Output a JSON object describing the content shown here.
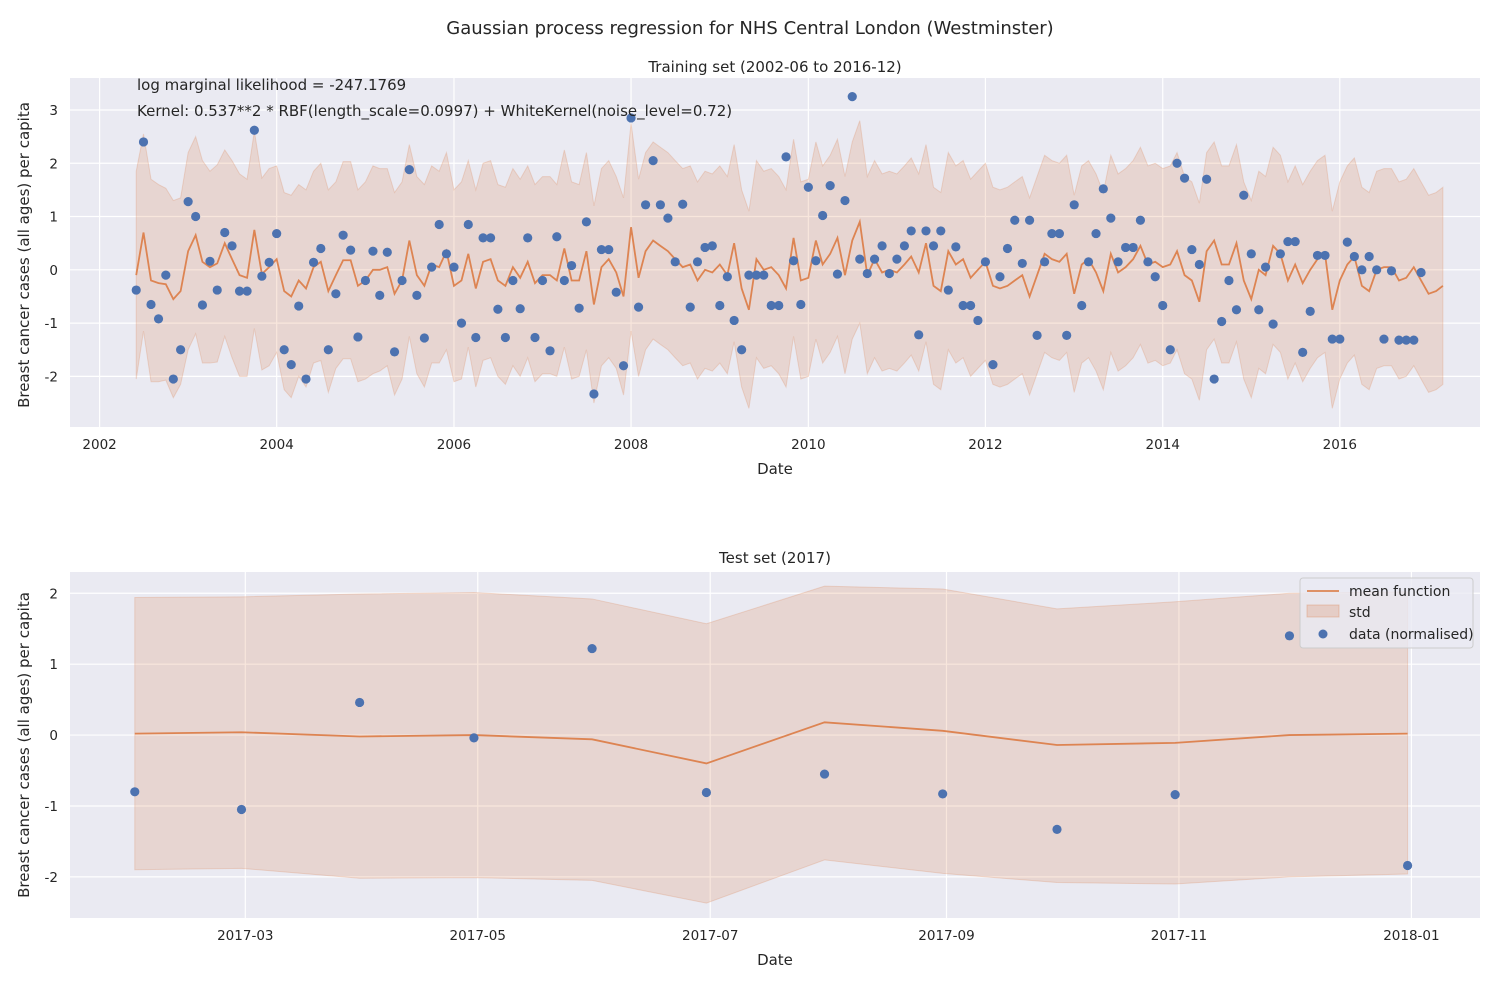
{
  "figure": {
    "suptitle": "Gaussian process regression for NHS Central London (Westminster)"
  },
  "colors": {
    "background": "#eaeaf2",
    "grid": "#ffffff",
    "mean_line": "#dd8452",
    "std_fill": "#dd8452",
    "points": "#4c72b0"
  },
  "chart_data": [
    {
      "type": "line",
      "title": "Training set (2002-06 to 2016-12)",
      "xlabel": "Date",
      "ylabel": "Breast cancer cases (all ages) per capita",
      "xlim": [
        "2001-09-01",
        "2017-08-01"
      ],
      "ylim": [
        -2.95,
        3.6
      ],
      "xticks": [
        "2002",
        "2004",
        "2006",
        "2008",
        "2010",
        "2012",
        "2014",
        "2016"
      ],
      "yticks": [
        -2,
        -1,
        0,
        1,
        2,
        3
      ],
      "grid": true,
      "annotations": [
        "log marginal likelihood = -247.1769",
        "Kernel: 0.537**2 * RBF(length_scale=0.0997) + WhiteKernel(noise_level=0.72)"
      ],
      "x_start": "2002-06",
      "x_step": "1 month",
      "series": [
        {
          "name": "mean function",
          "kind": "line",
          "values": [
            -0.1,
            0.7,
            -0.2,
            -0.25,
            -0.27,
            -0.55,
            -0.4,
            0.35,
            0.65,
            0.15,
            0.05,
            0.12,
            0.5,
            0.2,
            -0.1,
            -0.15,
            0.75,
            -0.08,
            0.05,
            0.2,
            -0.4,
            -0.5,
            -0.2,
            -0.35,
            0.05,
            0.15,
            -0.4,
            -0.1,
            0.18,
            0.18,
            -0.3,
            -0.2,
            0.0,
            0.0,
            0.05,
            -0.45,
            -0.2,
            0.55,
            -0.1,
            -0.3,
            0.1,
            0.05,
            0.35,
            -0.3,
            -0.2,
            0.3,
            -0.35,
            0.15,
            0.2,
            -0.2,
            -0.3,
            0.05,
            -0.15,
            0.15,
            -0.25,
            -0.1,
            -0.1,
            -0.2,
            0.4,
            -0.2,
            -0.2,
            0.35,
            -0.65,
            0.05,
            0.2,
            -0.05,
            -0.5,
            0.8,
            -0.15,
            0.35,
            0.55,
            0.45,
            0.35,
            0.2,
            0.05,
            0.1,
            -0.2,
            0.0,
            -0.05,
            0.1,
            -0.1,
            0.5,
            -0.35,
            -0.75,
            0.2,
            0.0,
            0.05,
            -0.1,
            -0.35,
            0.6,
            -0.2,
            -0.15,
            0.55,
            0.1,
            0.3,
            0.6,
            -0.1,
            0.55,
            0.9,
            -0.1,
            0.2,
            -0.05,
            0.0,
            -0.05,
            0.1,
            0.25,
            -0.05,
            0.5,
            -0.3,
            -0.4,
            0.35,
            0.1,
            0.2,
            -0.15,
            0.0,
            0.15,
            -0.3,
            -0.35,
            -0.3,
            -0.2,
            -0.1,
            -0.5,
            -0.1,
            0.3,
            0.2,
            0.15,
            0.3,
            -0.45,
            0.1,
            0.2,
            -0.05,
            -0.4,
            0.3,
            -0.05,
            0.05,
            0.2,
            0.45,
            0.1,
            0.15,
            0.05,
            0.1,
            0.35,
            -0.1,
            -0.2,
            -0.6,
            0.35,
            0.55,
            0.1,
            0.1,
            0.5,
            -0.2,
            -0.55,
            0.0,
            -0.1,
            0.45,
            0.3,
            -0.2,
            0.1,
            -0.25,
            0.0,
            0.2,
            0.3,
            -0.75,
            -0.2,
            0.1,
            0.25,
            -0.3,
            -0.4,
            0.0,
            0.05,
            0.05,
            -0.2,
            -0.15,
            0.05,
            -0.2,
            -0.45,
            -0.4,
            -0.3
          ]
        },
        {
          "name": "std",
          "kind": "band",
          "half_width": [
            1.95,
            1.85,
            1.9,
            1.85,
            1.8,
            1.85,
            1.75,
            1.85,
            1.85,
            1.9,
            1.8,
            1.85,
            1.75,
            1.85,
            1.9,
            1.85,
            1.85,
            1.8,
            1.85,
            1.75,
            1.85,
            1.9,
            1.8,
            1.85,
            1.8,
            1.85,
            1.9,
            1.75,
            1.85,
            1.85,
            1.8,
            1.85,
            1.95,
            1.9,
            1.85,
            1.9,
            1.85,
            1.8,
            1.85,
            1.9,
            1.85,
            1.8,
            1.85,
            1.8,
            1.85,
            1.75,
            1.85,
            1.85,
            1.85,
            1.8,
            1.85,
            1.85,
            1.85,
            1.8,
            1.85,
            1.85,
            1.85,
            1.8,
            1.85,
            1.85,
            1.8,
            1.85,
            1.85,
            1.85,
            1.85,
            1.8,
            1.85,
            1.95,
            1.85,
            1.85,
            1.85,
            1.85,
            1.85,
            1.85,
            1.85,
            1.85,
            1.85,
            1.85,
            1.85,
            1.85,
            1.85,
            1.85,
            1.85,
            1.85,
            1.85,
            1.85,
            1.85,
            1.85,
            1.85,
            1.85,
            1.85,
            1.85,
            1.85,
            1.85,
            1.85,
            1.85,
            1.85,
            1.85,
            1.9,
            1.85,
            1.85,
            1.85,
            1.85,
            1.85,
            1.85,
            1.85,
            1.85,
            1.85,
            1.85,
            1.85,
            1.85,
            1.85,
            1.85,
            1.85,
            1.85,
            1.85,
            1.85,
            1.85,
            1.85,
            1.85,
            1.85,
            1.85,
            1.85,
            1.85,
            1.85,
            1.85,
            1.85,
            1.85,
            1.85,
            1.85,
            1.85,
            1.85,
            1.85,
            1.85,
            1.85,
            1.85,
            1.85,
            1.85,
            1.85,
            1.85,
            1.85,
            1.85,
            1.85,
            1.85,
            1.85,
            1.85,
            1.85,
            1.85,
            1.85,
            1.85,
            1.85,
            1.85,
            1.85,
            1.85,
            1.85,
            1.85,
            1.85,
            1.85,
            1.85,
            1.85,
            1.85,
            1.85,
            1.85,
            1.85,
            1.85,
            1.85,
            1.85,
            1.85,
            1.85,
            1.85,
            1.85,
            1.85,
            1.85,
            1.85,
            1.85,
            1.85,
            1.85,
            1.85,
            1.85
          ]
        },
        {
          "name": "data (normalised)",
          "kind": "scatter",
          "values": [
            -0.38,
            2.4,
            -0.65,
            -0.92,
            -0.1,
            -2.05,
            -1.5,
            1.28,
            1.0,
            -0.66,
            0.16,
            -0.38,
            0.7,
            0.45,
            -0.4,
            -0.4,
            2.62,
            -0.12,
            0.14,
            0.68,
            -1.5,
            -1.78,
            -0.68,
            -2.05,
            0.14,
            0.4,
            -1.5,
            -0.45,
            0.65,
            0.37,
            -1.26,
            -0.2,
            0.35,
            -0.48,
            0.33,
            -1.54,
            -0.2,
            1.88,
            -0.48,
            -1.28,
            0.05,
            0.85,
            0.3,
            0.05,
            -1.0,
            0.85,
            -1.27,
            0.6,
            0.6,
            -0.74,
            -1.27,
            -0.2,
            -0.73,
            0.6,
            -1.27,
            -0.2,
            -1.52,
            0.62,
            -0.2,
            0.08,
            -0.72,
            0.9,
            -2.33,
            0.38,
            0.38,
            -0.42,
            -1.8,
            2.85,
            -0.7,
            1.22,
            2.05,
            1.22,
            0.97,
            0.15,
            1.23,
            -0.7,
            0.15,
            0.42,
            0.45,
            -0.67,
            -0.13,
            -0.95,
            -1.5,
            -0.1,
            -0.1,
            -0.1,
            -0.67,
            -0.67,
            2.12,
            0.17,
            -0.65,
            1.55,
            0.17,
            1.02,
            1.58,
            -0.08,
            1.3,
            3.25,
            0.2,
            -0.07,
            0.2,
            0.45,
            -0.07,
            0.2,
            0.45,
            0.73,
            -1.22,
            0.73,
            0.45,
            0.73,
            -0.38,
            0.43,
            -0.67,
            -0.67,
            -0.95,
            0.15,
            -1.78,
            -0.13,
            0.4,
            0.93,
            0.12,
            0.93,
            -1.23,
            0.15,
            0.68,
            0.68,
            -1.23,
            1.22,
            -0.67,
            0.15,
            0.68,
            1.52,
            0.97,
            0.15,
            0.42,
            0.42,
            0.93,
            0.15,
            -0.13,
            -0.67,
            -1.5,
            2.0,
            1.72,
            0.38,
            0.1,
            1.7,
            -2.05,
            -0.97,
            -0.2,
            -0.75,
            1.4,
            0.3,
            -0.75,
            0.05,
            -1.02,
            0.3,
            0.53,
            0.53,
            -1.55,
            -0.78,
            0.27,
            0.27,
            -1.3,
            -1.3,
            0.52,
            0.25,
            0.0,
            0.25,
            0.0,
            -1.3,
            -0.02,
            -1.32,
            -1.32,
            -1.32,
            -0.05
          ]
        }
      ]
    },
    {
      "type": "line",
      "title": "Test set (2017)",
      "xlabel": "Date",
      "ylabel": "Breast cancer cases (all ages) per capita",
      "xlim": [
        "2017-01-14",
        "2018-01-19"
      ],
      "ylim": [
        -2.58,
        2.3
      ],
      "xticks": [
        "2017-03",
        "2017-05",
        "2017-07",
        "2017-09",
        "2017-11",
        "2018-01"
      ],
      "yticks": [
        -2,
        -1,
        0,
        1,
        2
      ],
      "grid": true,
      "legend": {
        "placement": "top-right",
        "entries": [
          "mean function",
          "std",
          "data (normalised)"
        ]
      },
      "x": [
        "2017-01-31",
        "2017-02-28",
        "2017-03-31",
        "2017-04-30",
        "2017-05-31",
        "2017-06-30",
        "2017-07-31",
        "2017-08-31",
        "2017-09-30",
        "2017-10-31",
        "2017-11-30",
        "2017-12-31"
      ],
      "series": [
        {
          "name": "mean function",
          "kind": "line",
          "values": [
            0.02,
            0.04,
            -0.02,
            0.0,
            -0.06,
            -0.4,
            0.18,
            0.06,
            -0.14,
            -0.11,
            0.0,
            0.02
          ]
        },
        {
          "name": "std",
          "kind": "band",
          "upper": [
            1.94,
            1.95,
            1.99,
            2.01,
            1.92,
            1.57,
            2.1,
            2.06,
            1.78,
            1.88,
            2.0,
            2.02
          ],
          "lower": [
            -1.9,
            -1.88,
            -2.02,
            -2.01,
            -2.05,
            -2.37,
            -1.76,
            -1.95,
            -2.08,
            -2.1,
            -2.0,
            -1.96
          ]
        },
        {
          "name": "data (normalised)",
          "kind": "scatter",
          "values": [
            -0.8,
            -1.05,
            0.46,
            -0.04,
            1.22,
            -0.81,
            -0.55,
            -0.83,
            -1.33,
            -0.84,
            1.4,
            -1.84
          ]
        }
      ]
    }
  ]
}
